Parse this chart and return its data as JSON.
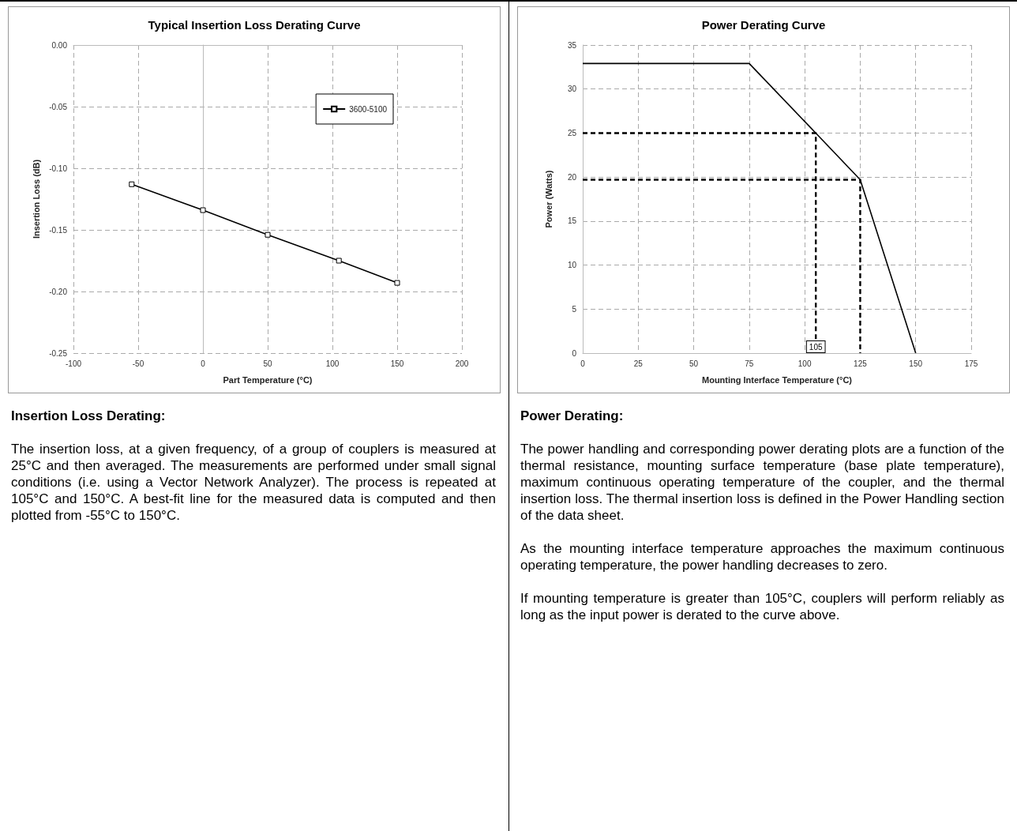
{
  "chart_data": [
    {
      "type": "line",
      "title": "Typical Insertion Loss Derating Curve",
      "xlabel": "Part Temperature (°C)",
      "ylabel": "Insertion Loss (dB)",
      "x": [
        -55,
        0,
        50,
        105,
        150
      ],
      "series": [
        {
          "name": "3600-5100",
          "color": "#000000",
          "values": [
            -0.113,
            -0.134,
            -0.154,
            -0.175,
            -0.193
          ]
        }
      ],
      "xlim": [
        -100,
        200
      ],
      "xticks": [
        -100,
        -50,
        0,
        50,
        100,
        150,
        200
      ],
      "ylim": [
        -0.25,
        0
      ],
      "yticks": [
        {
          "value": -0.25,
          "label": "-0.25"
        },
        {
          "value": -0.2,
          "label": "-0.20"
        },
        {
          "value": -0.15,
          "label": "-0.15"
        },
        {
          "value": -0.1,
          "label": "-0.10"
        },
        {
          "value": -0.05,
          "label": "-0.05"
        },
        {
          "value": 0,
          "label": "0.00"
        }
      ],
      "grid": true,
      "legend": "top right",
      "marker": "square",
      "line_style": "solid",
      "annotations": [
        "Insertion Loss Derating:",
        "The insertion loss, at a given frequency, of a group of couplers is measured at 25°C and then averaged.  The measurements are performed under small signal conditions (i.e. using a Vector Network Analyzer).  The process is repeated at 105°C and 150°C.  A best-fit line for the measured data is computed and then plotted from -55°C to 150°C."
      ]
    },
    {
      "type": "line",
      "title": "Power Derating Curve",
      "xlabel": "Mounting Interface Temperature (°C)",
      "ylabel": "Power (Watts)",
      "series": [
        {
          "color": "#000000",
          "x": [
            0,
            75,
            105,
            125,
            150
          ],
          "values": [
            32.9,
            32.9,
            25,
            19.7,
            0
          ]
        },
        {
          "color": "#000000",
          "x": [
            0,
            105,
            105
          ],
          "values": [
            25,
            25,
            0
          ],
          "line_style": "dashed"
        },
        {
          "color": "#000000",
          "x": [
            0,
            125,
            125
          ],
          "values": [
            19.7,
            19.7,
            0
          ],
          "line_style": "dashed"
        }
      ],
      "xlim": [
        0,
        175
      ],
      "xticks": [
        0,
        25,
        50,
        75,
        100,
        125,
        150,
        175
      ],
      "ylim": [
        0,
        35
      ],
      "yticks": [
        0,
        5,
        10,
        15,
        20,
        25,
        30,
        35
      ],
      "grid": true,
      "marker": "none",
      "line_style": "solid",
      "annotations": [
        {
          "text": "105",
          "x": 105,
          "y": 0
        },
        "Power Derating:",
        "The power handling and corresponding power derating plots are a function of the thermal resistance, mounting surface temperature (base plate temperature), maximum continuous operating temperature of the coupler, and the thermal insertion loss.  The thermal insertion loss is defined in the Power Handling section of the data sheet.",
        "As the mounting interface temperature approaches the maximum continuous operating temperature, the power handling decreases to zero.",
        "If mounting temperature is greater than 105°C, couplers will perform reliably as long as the input power is derated to the curve above."
      ]
    }
  ]
}
